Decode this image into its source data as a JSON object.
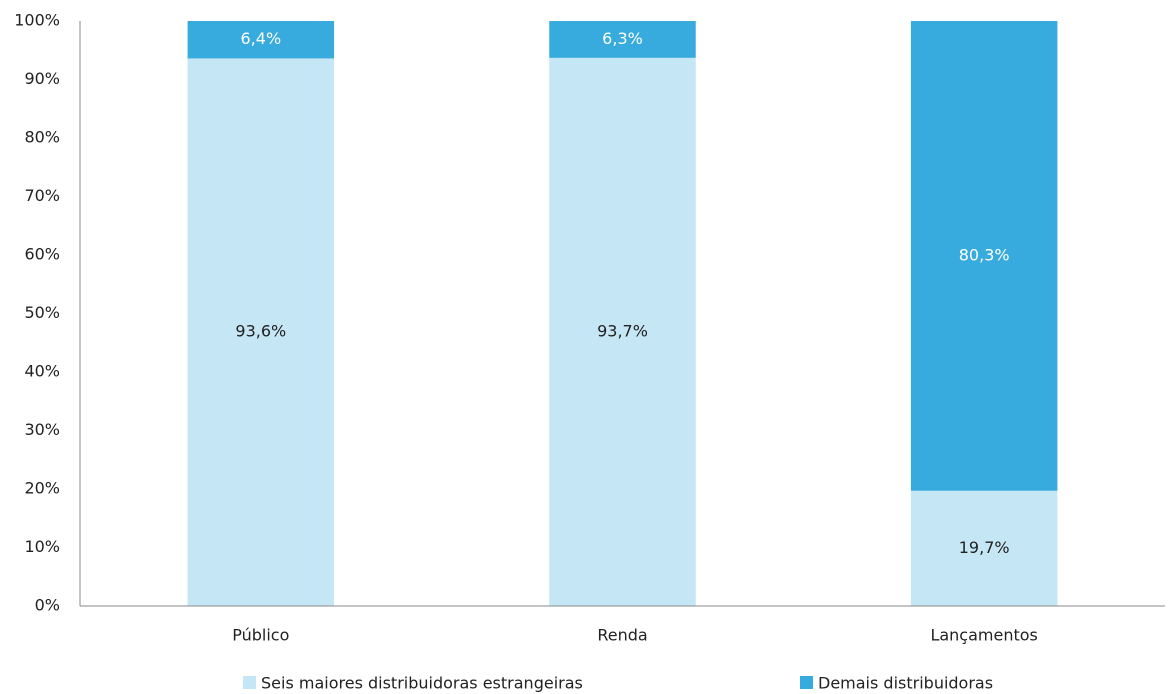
{
  "chart_data": {
    "type": "stacked_bar",
    "categories": [
      "Público",
      "Renda",
      "Lançamentos"
    ],
    "series": [
      {
        "name": "Seis maiores distribuidoras estrangeiras",
        "color": "#c5e6f5",
        "label_color": "#222222",
        "values": [
          93.6,
          93.7,
          19.7
        ],
        "value_labels": [
          "93,6%",
          "93,7%",
          "19,7%"
        ]
      },
      {
        "name": "Demais distribuidoras",
        "color": "#37abdd",
        "label_color": "#ffffff",
        "values": [
          6.4,
          6.3,
          80.3
        ],
        "value_labels": [
          "6,4%",
          "6,3%",
          "80,3%"
        ]
      }
    ],
    "ylim": [
      0,
      100
    ],
    "yticks": [
      {
        "value": 0,
        "label": "0%"
      },
      {
        "value": 10,
        "label": "10%"
      },
      {
        "value": 20,
        "label": "20%"
      },
      {
        "value": 30,
        "label": "30%"
      },
      {
        "value": 40,
        "label": "40%"
      },
      {
        "value": 50,
        "label": "50%"
      },
      {
        "value": 60,
        "label": "60%"
      },
      {
        "value": 70,
        "label": "70%"
      },
      {
        "value": 80,
        "label": "80%"
      },
      {
        "value": 90,
        "label": "90%"
      },
      {
        "value": 100,
        "label": "100%"
      }
    ],
    "grid": false,
    "legend": "bottom"
  }
}
